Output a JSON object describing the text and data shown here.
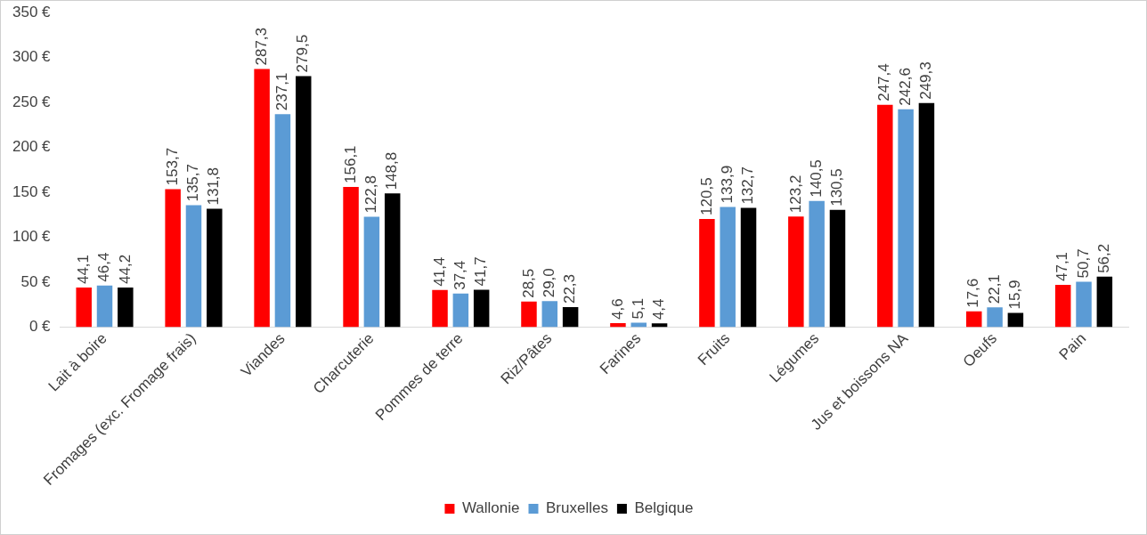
{
  "chart_data": {
    "type": "bar",
    "categories": [
      "Lait à boire",
      "Fromages (exc. Fromage frais)",
      "Viandes",
      "Charcuterie",
      "Pommes de terre",
      "Riz/Pâtes",
      "Farines",
      "Fruits",
      "Légumes",
      "Jus et boissons NA",
      "Oeufs",
      "Pain"
    ],
    "series": [
      {
        "name": "Wallonie",
        "color": "#ff0000",
        "values": [
          44.1,
          153.7,
          287.3,
          156.1,
          41.4,
          28.5,
          4.6,
          120.5,
          123.2,
          247.4,
          17.6,
          47.1
        ],
        "value_labels": [
          "44,1",
          "153,7",
          "287,3",
          "156,1",
          "41,4",
          "28,5",
          "4,6",
          "120,5",
          "123,2",
          "247,4",
          "17,6",
          "47,1"
        ]
      },
      {
        "name": "Bruxelles",
        "color": "#5b9bd5",
        "values": [
          46.4,
          135.7,
          237.1,
          122.8,
          37.4,
          29.0,
          5.1,
          133.9,
          140.5,
          242.6,
          22.1,
          50.7
        ],
        "value_labels": [
          "46,4",
          "135,7",
          "237,1",
          "122,8",
          "37,4",
          "29,0",
          "5,1",
          "133,9",
          "140,5",
          "242,6",
          "22,1",
          "50,7"
        ]
      },
      {
        "name": "Belgique",
        "color": "#000000",
        "values": [
          44.2,
          131.8,
          279.5,
          148.8,
          41.7,
          22.3,
          4.4,
          132.7,
          130.5,
          249.3,
          15.9,
          56.2
        ],
        "value_labels": [
          "44,2",
          "131,8",
          "279,5",
          "148,8",
          "41,7",
          "22,3",
          "4,4",
          "132,7",
          "130,5",
          "249,3",
          "15,9",
          "56,2"
        ]
      }
    ],
    "ylim": [
      0,
      350
    ],
    "yticks": [
      {
        "value": 0,
        "label": "0 €"
      },
      {
        "value": 50,
        "label": "50 €"
      },
      {
        "value": 100,
        "label": "100 €"
      },
      {
        "value": 150,
        "label": "150 €"
      },
      {
        "value": 200,
        "label": "200 €"
      },
      {
        "value": 250,
        "label": "250 €"
      },
      {
        "value": 300,
        "label": "300 €"
      },
      {
        "value": 350,
        "label": "350 €"
      }
    ],
    "grid": false,
    "legend": "bottom"
  }
}
